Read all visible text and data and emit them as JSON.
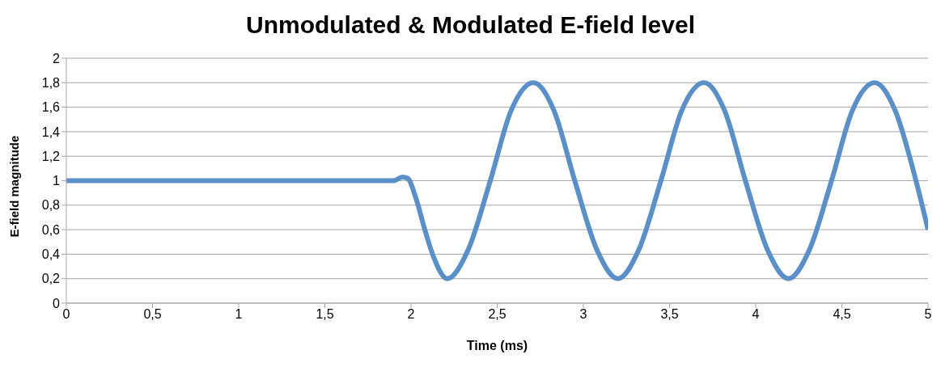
{
  "chart_data": {
    "type": "line",
    "title": "Unmodulated & Modulated E-field level",
    "xlabel": "Time (ms)",
    "ylabel": "E-field magnitude",
    "x": [
      0,
      1.9,
      1.95,
      1.98,
      2.03,
      2.08,
      2.13,
      2.21,
      2.33,
      2.46,
      2.58,
      2.71,
      2.83,
      2.95,
      3.08,
      3.2,
      3.32,
      3.45,
      3.57,
      3.7,
      3.82,
      3.94,
      4.07,
      4.19,
      4.31,
      4.44,
      4.56,
      4.69,
      4.81,
      4.93,
      5
    ],
    "series": [
      {
        "color": "#5b8fc7",
        "values": [
          1,
          1,
          1.03,
          1.02,
          0.85,
          0.6,
          0.38,
          0.2,
          0.43,
          1.0,
          1.57,
          1.8,
          1.57,
          1.0,
          0.43,
          0.2,
          0.43,
          1.0,
          1.57,
          1.8,
          1.57,
          1.0,
          0.43,
          0.2,
          0.43,
          1.0,
          1.57,
          1.8,
          1.57,
          1.0,
          0.6
        ]
      }
    ],
    "xlim": [
      0,
      5
    ],
    "xticks": [
      0,
      {
        "value": 0.5,
        "label": "0,5"
      },
      1,
      {
        "value": 1.5,
        "label": "1,5"
      },
      2,
      {
        "value": 2.5,
        "label": "2,5"
      },
      3,
      {
        "value": 3.5,
        "label": "3,5"
      },
      4,
      {
        "value": 4.5,
        "label": "4,5"
      },
      5
    ],
    "ylim": [
      0,
      2
    ],
    "yticks": [
      0,
      {
        "value": 0.2,
        "label": "0,2"
      },
      {
        "value": 0.4,
        "label": "0,4"
      },
      {
        "value": 0.6,
        "label": "0,6"
      },
      {
        "value": 0.8,
        "label": "0,8"
      },
      1,
      {
        "value": 1.2,
        "label": "1,2"
      },
      {
        "value": 1.4,
        "label": "1,4"
      },
      {
        "value": 1.6,
        "label": "1,6"
      },
      {
        "value": 1.8,
        "label": "1,8"
      },
      2
    ],
    "grid": "y",
    "marker": "none",
    "line_style": "solid",
    "legend": false
  }
}
